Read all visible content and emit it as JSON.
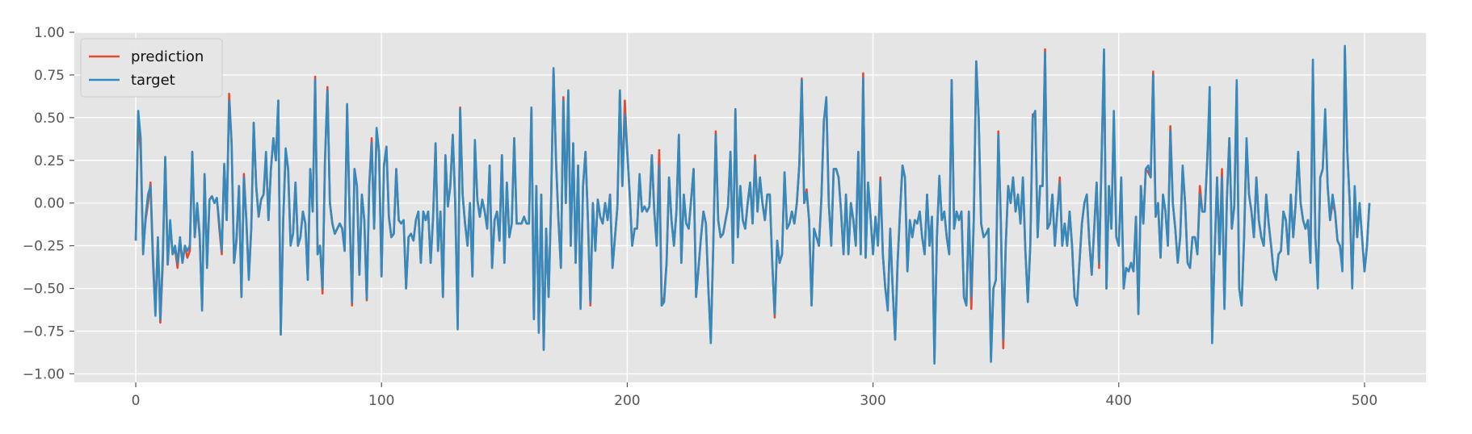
{
  "chart_data": {
    "type": "line",
    "title": "",
    "xlabel": "",
    "ylabel": "",
    "xlim": [
      -25,
      525
    ],
    "ylim": [
      -1.05,
      1.0
    ],
    "grid": true,
    "legend_position": "top-left",
    "x_ticks": [
      0,
      100,
      200,
      300,
      400,
      500
    ],
    "y_ticks": [
      1.0,
      0.75,
      0.5,
      0.25,
      0.0,
      -0.25,
      -0.5,
      -0.75,
      -1.0
    ],
    "x_tick_labels": [
      "0",
      "100",
      "200",
      "300",
      "400",
      "500"
    ],
    "y_tick_labels": [
      "1.00",
      "0.75",
      "0.50",
      "0.25",
      "0.00",
      "−0.25",
      "−0.50",
      "−0.75",
      "−1.00"
    ],
    "x_start": 0,
    "x_step": 1,
    "colors": {
      "prediction": "#E24A33",
      "target": "#348ABD",
      "background": "#E5E5E5",
      "grid": "#FFFFFF"
    },
    "series": [
      {
        "name": "prediction",
        "color": "#E24A33",
        "values": [
          -0.22,
          0.52,
          0.3,
          -0.28,
          -0.1,
          0.0,
          0.12,
          -0.3,
          -0.64,
          -0.22,
          -0.7,
          -0.35,
          0.27,
          -0.36,
          -0.12,
          -0.3,
          -0.27,
          -0.38,
          -0.22,
          -0.35,
          -0.25,
          -0.32,
          -0.28,
          0.3,
          -0.2,
          -0.02,
          -0.2,
          -0.62,
          0.17,
          -0.37,
          0.02,
          0.04,
          0.0,
          0.03,
          -0.15,
          -0.3,
          0.22,
          -0.1,
          0.64,
          0.35,
          -0.35,
          -0.22,
          0.1,
          -0.55,
          0.17,
          -0.1,
          -0.43,
          -0.15,
          0.47,
          0.1,
          -0.08,
          0.02,
          0.05,
          0.28,
          -0.1,
          0.2,
          0.38,
          0.25,
          0.6,
          -0.77,
          -0.1,
          0.3,
          0.2,
          -0.23,
          -0.18,
          0.12,
          -0.25,
          -0.2,
          -0.05,
          -0.12,
          -0.45,
          0.2,
          -0.05,
          0.74,
          -0.3,
          -0.25,
          -0.53,
          0.25,
          0.68,
          0.0,
          -0.12,
          -0.18,
          -0.15,
          -0.12,
          -0.15,
          -0.28,
          0.57,
          -0.05,
          -0.6,
          0.2,
          0.1,
          -0.42,
          0.05,
          -0.1,
          -0.57,
          0.1,
          0.38,
          -0.15,
          0.42,
          0.3,
          -0.43,
          0.22,
          0.33,
          -0.08,
          -0.2,
          -0.18,
          0.2,
          -0.1,
          -0.12,
          -0.1,
          -0.5,
          -0.2,
          -0.18,
          -0.22,
          -0.1,
          -0.05,
          -0.35,
          -0.05,
          -0.1,
          -0.05,
          -0.35,
          -0.08,
          0.35,
          -0.28,
          -0.05,
          -0.55,
          0.28,
          -0.02,
          0.1,
          0.4,
          0.0,
          -0.72,
          0.56,
          0.05,
          -0.12,
          -0.25,
          0.0,
          -0.43,
          0.35,
          0.02,
          -0.08,
          0.02,
          -0.05,
          -0.15,
          0.22,
          -0.38,
          -0.1,
          -0.05,
          -0.22,
          0.28,
          -0.35,
          0.12,
          -0.2,
          -0.12,
          0.38,
          -0.12,
          -0.12,
          -0.12,
          -0.08,
          -0.12,
          -0.12,
          0.55,
          -0.68,
          0.1,
          -0.75,
          0.05,
          -0.85,
          -0.15,
          -0.55,
          0.0,
          0.78,
          0.25,
          -0.1,
          -0.38,
          0.62,
          0.0,
          0.65,
          -0.25,
          0.35,
          -0.35,
          0.22,
          -0.6,
          0.1,
          0.3,
          -0.1,
          -0.6,
          0.0,
          -0.28,
          0.02,
          -0.08,
          -0.12,
          0.0,
          -0.1,
          0.05,
          -0.38,
          -0.2,
          -0.02,
          0.65,
          0.1,
          0.6,
          0.3,
          0.05,
          -0.25,
          -0.15,
          -0.15,
          0.15,
          -0.05,
          -0.02,
          -0.05,
          -0.02,
          0.28,
          -0.05,
          -0.25,
          0.31,
          -0.6,
          -0.55,
          -0.35,
          0.15,
          -0.1,
          -0.25,
          -0.05,
          0.4,
          -0.35,
          0.05,
          -0.12,
          -0.15,
          0.02,
          0.2,
          -0.55,
          -0.38,
          -0.2,
          -0.05,
          -0.12,
          -0.5,
          -0.8,
          -0.25,
          0.42,
          -0.1,
          -0.2,
          -0.18,
          -0.1,
          -0.02,
          0.3,
          -0.35,
          0.55,
          -0.2,
          0.1,
          -0.1,
          -0.15,
          0.0,
          0.12,
          -0.12,
          0.28,
          -0.05,
          0.15,
          0.0,
          -0.1,
          0.05,
          0.05,
          -0.35,
          -0.67,
          -0.22,
          -0.35,
          -0.3,
          0.18,
          -0.15,
          -0.12,
          -0.05,
          -0.12,
          0.0,
          0.22,
          0.73,
          0.0,
          0.08,
          -0.1,
          -0.6,
          -0.15,
          -0.2,
          -0.25,
          0.03,
          0.48,
          0.6,
          0.0,
          -0.25,
          0.2,
          0.2,
          0.15,
          -0.05,
          -0.3,
          0.05,
          -0.3,
          0.0,
          -0.1,
          -0.25,
          0.3,
          -0.3,
          0.76,
          -0.32,
          0.12,
          -0.08,
          -0.3,
          -0.08,
          -0.25,
          0.15,
          -0.3,
          -0.5,
          -0.6,
          -0.15,
          -0.5,
          -0.8,
          -0.35,
          -0.05,
          0.22,
          0.15,
          -0.4,
          -0.1,
          -0.2,
          -0.1,
          -0.12,
          -0.05,
          -0.2,
          -0.3,
          0.05,
          -0.25,
          -0.08,
          -0.92,
          -0.2,
          0.15,
          -0.1,
          -0.05,
          -0.2,
          -0.3,
          0.72,
          -0.15,
          -0.05,
          -0.1,
          -0.05,
          -0.55,
          -0.6,
          -0.05,
          -0.62,
          -0.1,
          0.83,
          0.5,
          -0.12,
          -0.2,
          -0.18,
          -0.15,
          -0.9,
          -0.5,
          -0.45,
          0.42,
          -0.1,
          -0.85,
          -0.25,
          0.1,
          0.0,
          0.15,
          -0.05,
          0.05,
          -0.12,
          0.15,
          -0.28,
          -0.58,
          -0.25,
          0.52,
          0.52,
          -0.2,
          0.1,
          0.1,
          0.9,
          -0.15,
          -0.12,
          0.05,
          -0.25,
          -0.05,
          0.15,
          -0.25,
          -0.12,
          -0.25,
          -0.05,
          -0.25,
          -0.55,
          -0.6,
          -0.35,
          -0.12,
          0.0,
          0.05,
          -0.22,
          -0.42,
          -0.15,
          0.12,
          -0.38,
          0.25,
          0.88,
          -0.5,
          0.1,
          -0.15,
          0.5,
          -0.2,
          -0.25,
          0.15,
          -0.5,
          -0.38,
          -0.4,
          -0.35,
          -0.4,
          -0.08,
          -0.65,
          0.1,
          -0.12,
          0.2,
          0.18,
          0.15,
          0.77,
          -0.08,
          0.0,
          -0.32,
          0.05,
          -0.05,
          -0.25,
          0.45,
          0.0,
          -0.15,
          -0.35,
          -0.2,
          0.2,
          0.0,
          -0.35,
          -0.38,
          -0.2,
          -0.2,
          -0.3,
          0.1,
          -0.05,
          -0.05,
          0.25,
          0.6,
          -0.8,
          -0.3,
          0.15,
          -0.3,
          0.2,
          -0.6,
          0.02,
          0.38,
          -0.15,
          -0.02,
          0.68,
          -0.5,
          -0.6,
          -0.2,
          0.35,
          0.05,
          -0.05,
          -0.2,
          0.15,
          -0.1,
          -0.2,
          -0.25,
          0.05,
          -0.12,
          -0.25,
          -0.4,
          -0.45,
          -0.3,
          -0.28,
          -0.05,
          -0.1,
          -0.3,
          0.05,
          -0.2,
          0.0,
          0.3,
          0.0,
          -0.1,
          -0.15,
          -0.1,
          -0.35,
          0.8,
          -0.2,
          -0.45,
          0.15,
          0.2,
          0.5,
          0.1,
          -0.1,
          0.0,
          -0.05,
          -0.22,
          -0.25,
          -0.38,
          0.9,
          0.3,
          0.0,
          -0.48,
          0.05,
          -0.2,
          0.0,
          -0.2,
          -0.4,
          -0.25,
          0.0
        ]
      },
      {
        "name": "target",
        "color": "#348ABD",
        "values": [
          -0.22,
          0.54,
          0.38,
          -0.3,
          -0.08,
          0.05,
          0.1,
          -0.35,
          -0.66,
          -0.2,
          -0.68,
          -0.3,
          0.27,
          -0.36,
          -0.1,
          -0.3,
          -0.25,
          -0.35,
          -0.2,
          -0.35,
          -0.25,
          -0.28,
          -0.25,
          0.3,
          -0.2,
          0.0,
          -0.18,
          -0.63,
          0.17,
          -0.38,
          0.02,
          0.04,
          0.0,
          0.03,
          -0.12,
          -0.28,
          0.23,
          -0.1,
          0.6,
          0.35,
          -0.35,
          -0.2,
          0.1,
          -0.55,
          0.15,
          -0.1,
          -0.45,
          -0.15,
          0.47,
          0.1,
          -0.08,
          0.02,
          0.05,
          0.3,
          -0.1,
          0.2,
          0.38,
          0.25,
          0.6,
          -0.77,
          -0.1,
          0.32,
          0.2,
          -0.25,
          -0.18,
          0.12,
          -0.25,
          -0.2,
          -0.05,
          -0.12,
          -0.45,
          0.2,
          -0.05,
          0.72,
          -0.3,
          -0.25,
          -0.5,
          0.25,
          0.66,
          0.0,
          -0.12,
          -0.18,
          -0.15,
          -0.12,
          -0.15,
          -0.28,
          0.58,
          -0.05,
          -0.58,
          0.2,
          0.1,
          -0.42,
          0.05,
          -0.1,
          -0.56,
          0.1,
          0.35,
          -0.15,
          0.44,
          0.3,
          -0.43,
          0.22,
          0.33,
          -0.08,
          -0.2,
          -0.18,
          0.2,
          -0.1,
          -0.12,
          -0.1,
          -0.5,
          -0.2,
          -0.18,
          -0.22,
          -0.1,
          -0.05,
          -0.35,
          -0.05,
          -0.1,
          -0.05,
          -0.35,
          -0.08,
          0.35,
          -0.28,
          -0.05,
          -0.55,
          0.28,
          -0.02,
          0.1,
          0.4,
          0.0,
          -0.74,
          0.55,
          0.05,
          -0.12,
          -0.25,
          0.0,
          -0.43,
          0.37,
          0.02,
          -0.08,
          0.02,
          -0.05,
          -0.15,
          0.22,
          -0.38,
          -0.1,
          -0.05,
          -0.22,
          0.28,
          -0.35,
          0.12,
          -0.2,
          -0.12,
          0.38,
          -0.12,
          -0.12,
          -0.12,
          -0.08,
          -0.12,
          -0.12,
          0.56,
          -0.68,
          0.1,
          -0.76,
          0.05,
          -0.86,
          -0.15,
          -0.55,
          0.0,
          0.79,
          0.25,
          -0.1,
          -0.38,
          0.6,
          0.0,
          0.66,
          -0.25,
          0.35,
          -0.35,
          0.22,
          -0.62,
          0.1,
          0.3,
          -0.1,
          -0.58,
          0.0,
          -0.28,
          0.02,
          -0.08,
          -0.12,
          0.0,
          -0.1,
          0.05,
          -0.38,
          -0.2,
          -0.02,
          0.66,
          0.1,
          0.52,
          0.3,
          0.05,
          -0.25,
          -0.15,
          -0.15,
          0.17,
          -0.05,
          -0.02,
          -0.05,
          -0.02,
          0.28,
          -0.05,
          -0.25,
          0.22,
          -0.6,
          -0.58,
          -0.35,
          0.15,
          -0.1,
          -0.25,
          -0.05,
          0.4,
          -0.35,
          0.05,
          -0.12,
          -0.15,
          0.02,
          0.2,
          -0.55,
          -0.38,
          -0.2,
          -0.05,
          -0.12,
          -0.5,
          -0.82,
          -0.25,
          0.4,
          -0.1,
          -0.2,
          -0.18,
          -0.1,
          -0.02,
          0.3,
          -0.35,
          0.55,
          -0.2,
          0.1,
          -0.1,
          -0.15,
          0.0,
          0.12,
          -0.12,
          0.25,
          -0.05,
          0.15,
          0.0,
          -0.1,
          0.05,
          0.05,
          -0.35,
          -0.65,
          -0.22,
          -0.35,
          -0.3,
          0.18,
          -0.15,
          -0.12,
          -0.05,
          -0.12,
          0.0,
          0.22,
          0.72,
          0.0,
          0.06,
          -0.1,
          -0.6,
          -0.15,
          -0.2,
          -0.25,
          0.03,
          0.48,
          0.62,
          0.0,
          -0.25,
          0.2,
          0.2,
          0.15,
          -0.05,
          -0.3,
          0.05,
          -0.3,
          0.0,
          -0.1,
          -0.25,
          0.3,
          -0.3,
          0.73,
          -0.32,
          0.12,
          -0.08,
          -0.3,
          -0.08,
          -0.25,
          0.13,
          -0.3,
          -0.5,
          -0.63,
          -0.15,
          -0.5,
          -0.8,
          -0.35,
          -0.05,
          0.22,
          0.15,
          -0.4,
          -0.1,
          -0.2,
          -0.1,
          -0.12,
          -0.05,
          -0.2,
          -0.3,
          0.05,
          -0.25,
          -0.08,
          -0.94,
          -0.2,
          0.16,
          -0.1,
          -0.05,
          -0.2,
          -0.3,
          0.72,
          -0.15,
          -0.05,
          -0.1,
          -0.05,
          -0.55,
          -0.6,
          -0.05,
          -0.55,
          -0.1,
          0.83,
          0.5,
          -0.12,
          -0.2,
          -0.18,
          -0.15,
          -0.93,
          -0.5,
          -0.45,
          0.4,
          -0.1,
          -0.8,
          -0.25,
          0.1,
          0.0,
          0.15,
          -0.05,
          0.05,
          -0.12,
          0.15,
          -0.28,
          -0.58,
          -0.25,
          0.5,
          0.54,
          -0.2,
          0.1,
          0.1,
          0.88,
          -0.15,
          -0.12,
          0.05,
          -0.25,
          -0.05,
          0.12,
          -0.25,
          -0.12,
          -0.25,
          -0.05,
          -0.25,
          -0.55,
          -0.6,
          -0.35,
          -0.12,
          0.0,
          0.05,
          -0.22,
          -0.42,
          -0.15,
          0.12,
          -0.35,
          0.25,
          0.9,
          -0.5,
          0.1,
          -0.15,
          0.54,
          -0.2,
          -0.25,
          0.15,
          -0.5,
          -0.38,
          -0.4,
          -0.35,
          -0.4,
          -0.08,
          -0.65,
          0.1,
          -0.12,
          0.2,
          0.22,
          0.15,
          0.75,
          -0.08,
          0.0,
          -0.32,
          0.05,
          -0.05,
          -0.25,
          0.42,
          0.0,
          -0.15,
          -0.35,
          -0.2,
          0.22,
          0.0,
          -0.35,
          -0.38,
          -0.2,
          -0.2,
          -0.3,
          0.05,
          -0.05,
          -0.05,
          0.25,
          0.68,
          -0.82,
          -0.3,
          0.15,
          -0.3,
          0.15,
          -0.62,
          0.02,
          0.38,
          -0.15,
          -0.02,
          0.72,
          -0.5,
          -0.6,
          -0.2,
          0.38,
          0.05,
          -0.05,
          -0.2,
          0.15,
          -0.1,
          -0.2,
          -0.25,
          0.05,
          -0.12,
          -0.25,
          -0.4,
          -0.45,
          -0.3,
          -0.28,
          -0.05,
          -0.1,
          -0.3,
          0.05,
          -0.2,
          0.0,
          0.3,
          0.0,
          -0.1,
          -0.15,
          -0.1,
          -0.35,
          0.84,
          -0.2,
          -0.5,
          0.15,
          0.2,
          0.55,
          0.1,
          -0.1,
          0.05,
          -0.05,
          -0.22,
          -0.25,
          -0.4,
          0.92,
          0.3,
          0.0,
          -0.5,
          0.1,
          -0.2,
          0.0,
          -0.2,
          -0.4,
          -0.25,
          0.0
        ]
      }
    ]
  }
}
